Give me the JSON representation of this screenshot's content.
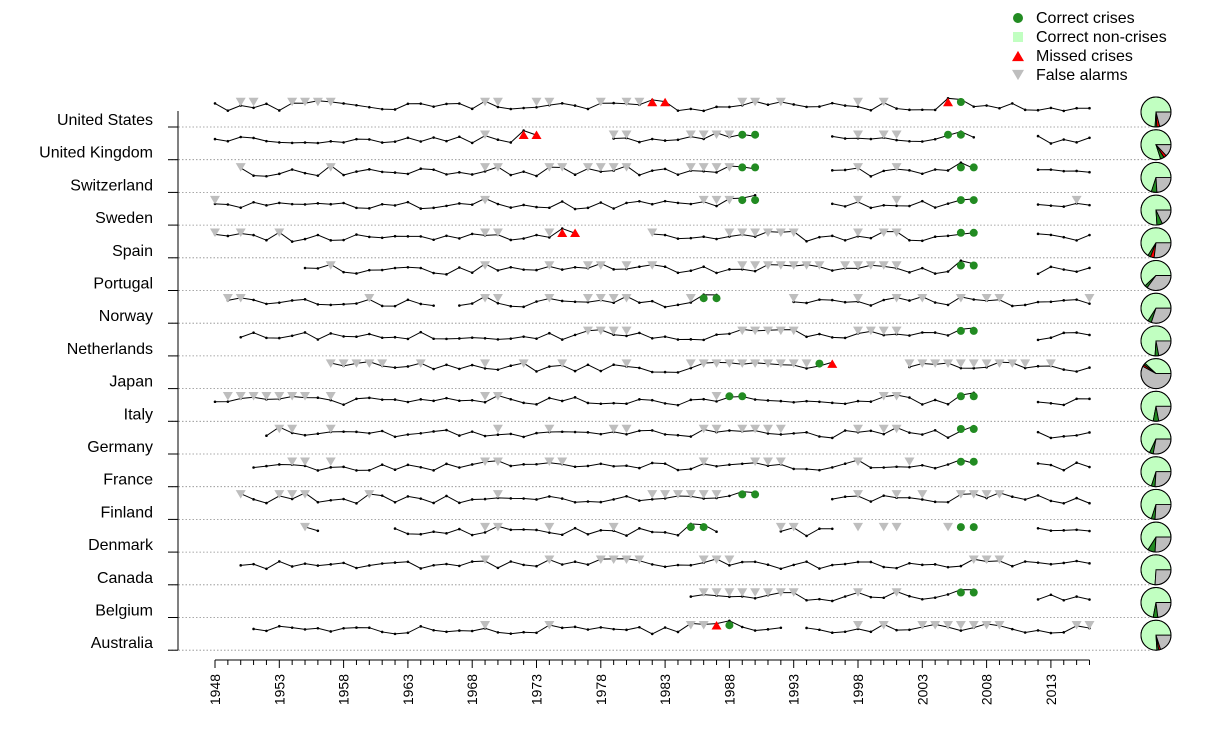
{
  "chart_data": {
    "type": "line",
    "x_axis": {
      "range": [
        1948,
        2016
      ],
      "tick_labels": [
        "1948",
        "1953",
        "1958",
        "1963",
        "1968",
        "1973",
        "1978",
        "1983",
        "1988",
        "1993",
        "1998",
        "2003",
        "2008",
        "2013"
      ]
    },
    "legend": {
      "placement": "top-right",
      "items": [
        {
          "label": "Correct crises",
          "marker": "circle",
          "color": "#228B22"
        },
        {
          "label": "Correct non-crises",
          "marker": "square",
          "color": "#C1FFC1"
        },
        {
          "label": "Missed crises",
          "marker": "triangle-up",
          "color": "#FF0000"
        },
        {
          "label": "False alarms",
          "marker": "triangle-down",
          "color": "#BEBEBE"
        }
      ]
    },
    "colors": {
      "correct_crises": "#228B22",
      "correct_non_crises": "#C1FFC1",
      "missed_crises": "#FF0000",
      "false_alarms": "#BEBEBE"
    },
    "countries": [
      {
        "name": "United States",
        "segments": [
          [
            1948,
            2016
          ]
        ],
        "gaps": [
          [
            1984,
            1988
          ],
          [
            2008,
            2012
          ]
        ],
        "correct_crises": [
          2006
        ],
        "missed_crises": [
          1982,
          1983,
          2005
        ],
        "false_alarms": [
          1950,
          1951,
          1954,
          1955,
          1956,
          1957,
          1969,
          1970,
          1973,
          1974,
          1978,
          1980,
          1981,
          1989,
          1990,
          1992,
          1998,
          2000
        ],
        "pie": [
          0.74,
          0.02,
          0.03,
          0.21
        ]
      },
      {
        "name": "United Kingdom",
        "segments": [
          [
            1948,
            1973
          ],
          [
            1979,
            1990
          ],
          [
            1996,
            2007
          ],
          [
            2012,
            2016
          ]
        ],
        "correct_crises": [
          1989,
          1990,
          2005,
          2006
        ],
        "missed_crises": [
          1972,
          1973
        ],
        "false_alarms": [
          1969,
          1979,
          1980,
          1985,
          1986,
          1987,
          1988,
          1998,
          2000,
          2001
        ],
        "pie": [
          0.8,
          0.04,
          0.03,
          0.13
        ]
      },
      {
        "name": "Switzerland",
        "segments": [
          [
            1950,
            1990
          ],
          [
            1996,
            2007
          ],
          [
            2012,
            2016
          ]
        ],
        "correct_crises": [
          1989,
          1990,
          2006,
          2007
        ],
        "missed_crises": [],
        "false_alarms": [
          1950,
          1957,
          1969,
          1970,
          1974,
          1975,
          1977,
          1978,
          1979,
          1980,
          1985,
          1986,
          1987,
          1988,
          1998,
          2001
        ],
        "pie": [
          0.7,
          0.06,
          0,
          0.24
        ]
      },
      {
        "name": "Sweden",
        "segments": [
          [
            1948,
            1990
          ],
          [
            1996,
            2007
          ],
          [
            2012,
            2016
          ]
        ],
        "correct_crises": [
          1989,
          1990,
          2006,
          2007
        ],
        "missed_crises": [],
        "false_alarms": [
          1948,
          1969,
          1986,
          1987,
          1988,
          1998,
          2001,
          2015
        ],
        "pie": [
          0.76,
          0.06,
          0,
          0.18
        ]
      },
      {
        "name": "Spain",
        "segments": [
          [
            1948,
            1976
          ],
          [
            1982,
            2007
          ],
          [
            2012,
            2016
          ]
        ],
        "correct_crises": [
          2006,
          2007
        ],
        "missed_crises": [
          1975,
          1976
        ],
        "false_alarms": [
          1948,
          1950,
          1953,
          1969,
          1970,
          1974,
          1982,
          1988,
          1989,
          1990,
          1991,
          1992,
          1993,
          1998,
          2000,
          2001
        ],
        "pie": [
          0.66,
          0.03,
          0.04,
          0.27
        ]
      },
      {
        "name": "Portugal",
        "segments": [
          [
            1955,
            2007
          ],
          [
            2012,
            2016
          ]
        ],
        "correct_crises": [
          2006,
          2007
        ],
        "missed_crises": [],
        "false_alarms": [
          1957,
          1969,
          1974,
          1977,
          1978,
          1980,
          1982,
          1989,
          1990,
          1991,
          1992,
          1993,
          1994,
          1995,
          1997,
          1998,
          1999,
          2000,
          2001
        ],
        "pie": [
          0.62,
          0.03,
          0,
          0.35
        ]
      },
      {
        "name": "Norway",
        "segments": [
          [
            1949,
            1965
          ],
          [
            1967,
            1987
          ],
          [
            1993,
            2016
          ]
        ],
        "correct_crises": [
          1986,
          1987
        ],
        "missed_crises": [],
        "false_alarms": [
          1949,
          1950,
          1960,
          1969,
          1970,
          1974,
          1977,
          1978,
          1979,
          1980,
          1985,
          1993,
          1998,
          2001,
          2003,
          2006,
          2008,
          2009,
          2016
        ],
        "pie": [
          0.66,
          0.04,
          0,
          0.3
        ]
      },
      {
        "name": "Netherlands",
        "segments": [
          [
            1950,
            2007
          ],
          [
            2012,
            2016
          ]
        ],
        "correct_crises": [
          2006,
          2007
        ],
        "missed_crises": [],
        "false_alarms": [
          1977,
          1978,
          1979,
          1980,
          1989,
          1990,
          1991,
          1992,
          1993,
          1998,
          1999,
          2000,
          2001
        ],
        "pie": [
          0.74,
          0.04,
          0,
          0.22
        ]
      },
      {
        "name": "Japan",
        "segments": [
          [
            1957,
            1996
          ],
          [
            2002,
            2016
          ]
        ],
        "correct_crises": [
          1995
        ],
        "missed_crises": [
          1996
        ],
        "false_alarms": [
          1957,
          1958,
          1959,
          1960,
          1961,
          1964,
          1969,
          1972,
          1975,
          1980,
          1985,
          1986,
          1987,
          1988,
          1989,
          1990,
          1991,
          1992,
          1993,
          1994,
          2002,
          2003,
          2004,
          2005,
          2006,
          2007,
          2008,
          2009,
          2010,
          2011,
          2013
        ],
        "pie": [
          0.38,
          0.02,
          0.02,
          0.58
        ]
      },
      {
        "name": "Italy",
        "segments": [
          [
            1948,
            2007
          ],
          [
            2012,
            2016
          ]
        ],
        "correct_crises": [
          1988,
          1989,
          2006,
          2007
        ],
        "missed_crises": [],
        "false_alarms": [
          1949,
          1950,
          1951,
          1952,
          1953,
          1954,
          1955,
          1957,
          1969,
          1970,
          1987,
          2000,
          2001
        ],
        "pie": [
          0.72,
          0.06,
          0,
          0.22
        ]
      },
      {
        "name": "Germany",
        "segments": [
          [
            1952,
            2007
          ],
          [
            2012,
            2016
          ]
        ],
        "correct_crises": [
          2006,
          2007
        ],
        "missed_crises": [],
        "false_alarms": [
          1953,
          1954,
          1957,
          1970,
          1974,
          1979,
          1980,
          1986,
          1987,
          1989,
          1990,
          1991,
          1992,
          1998,
          2000,
          2001
        ],
        "pie": [
          0.68,
          0.04,
          0,
          0.28
        ]
      },
      {
        "name": "France",
        "segments": [
          [
            1951,
            2007
          ],
          [
            2012,
            2016
          ]
        ],
        "correct_crises": [
          2006,
          2007
        ],
        "missed_crises": [],
        "false_alarms": [
          1954,
          1955,
          1957,
          1969,
          1970,
          1974,
          1975,
          1986,
          1990,
          1991,
          1992,
          1998,
          2002
        ],
        "pie": [
          0.7,
          0.04,
          0,
          0.26
        ]
      },
      {
        "name": "Finland",
        "segments": [
          [
            1950,
            1990
          ],
          [
            1996,
            2016
          ]
        ],
        "correct_crises": [
          1989,
          1990
        ],
        "missed_crises": [],
        "false_alarms": [
          1950,
          1953,
          1954,
          1955,
          1960,
          1970,
          1982,
          1983,
          1984,
          1985,
          1986,
          1987,
          1998,
          2001,
          2003,
          2006,
          2007,
          2008,
          2009
        ],
        "pie": [
          0.7,
          0.04,
          0,
          0.26
        ]
      },
      {
        "name": "Denmark",
        "segments": [
          [
            1955,
            1956
          ],
          [
            1962,
            1987
          ],
          [
            1992,
            1996
          ],
          [
            2012,
            2016
          ]
        ],
        "correct_crises": [
          1985,
          1986,
          2006,
          2007
        ],
        "missed_crises": [],
        "false_alarms": [
          1955,
          1969,
          1970,
          1974,
          1979,
          1992,
          1993,
          1998,
          2000,
          2001,
          2005
        ],
        "pie": [
          0.66,
          0.08,
          0,
          0.26
        ]
      },
      {
        "name": "Canada",
        "segments": [
          [
            1950,
            2016
          ]
        ],
        "correct_crises": [],
        "missed_crises": [],
        "false_alarms": [
          1969,
          1974,
          1978,
          1979,
          1980,
          1981,
          1986,
          1987,
          1988,
          2007,
          2008,
          2009
        ],
        "pie": [
          0.74,
          0,
          0,
          0.26
        ]
      },
      {
        "name": "Belgium",
        "segments": [
          [
            1985,
            2007
          ],
          [
            2012,
            2016
          ]
        ],
        "correct_crises": [
          2006,
          2007
        ],
        "missed_crises": [],
        "false_alarms": [
          1986,
          1987,
          1988,
          1989,
          1990,
          1991,
          1992,
          1993,
          1998,
          2001
        ],
        "pie": [
          0.72,
          0.05,
          0,
          0.23
        ]
      },
      {
        "name": "Australia",
        "segments": [
          [
            1951,
            1992
          ],
          [
            1994,
            2016
          ]
        ],
        "correct_crises": [
          1988
        ],
        "missed_crises": [
          1987
        ],
        "false_alarms": [
          1969,
          1974,
          1985,
          1986,
          1998,
          2000,
          2003,
          2004,
          2005,
          2006,
          2007,
          2008,
          2009,
          2015,
          2016
        ],
        "pie": [
          0.76,
          0.02,
          0.02,
          0.2
        ]
      }
    ]
  }
}
